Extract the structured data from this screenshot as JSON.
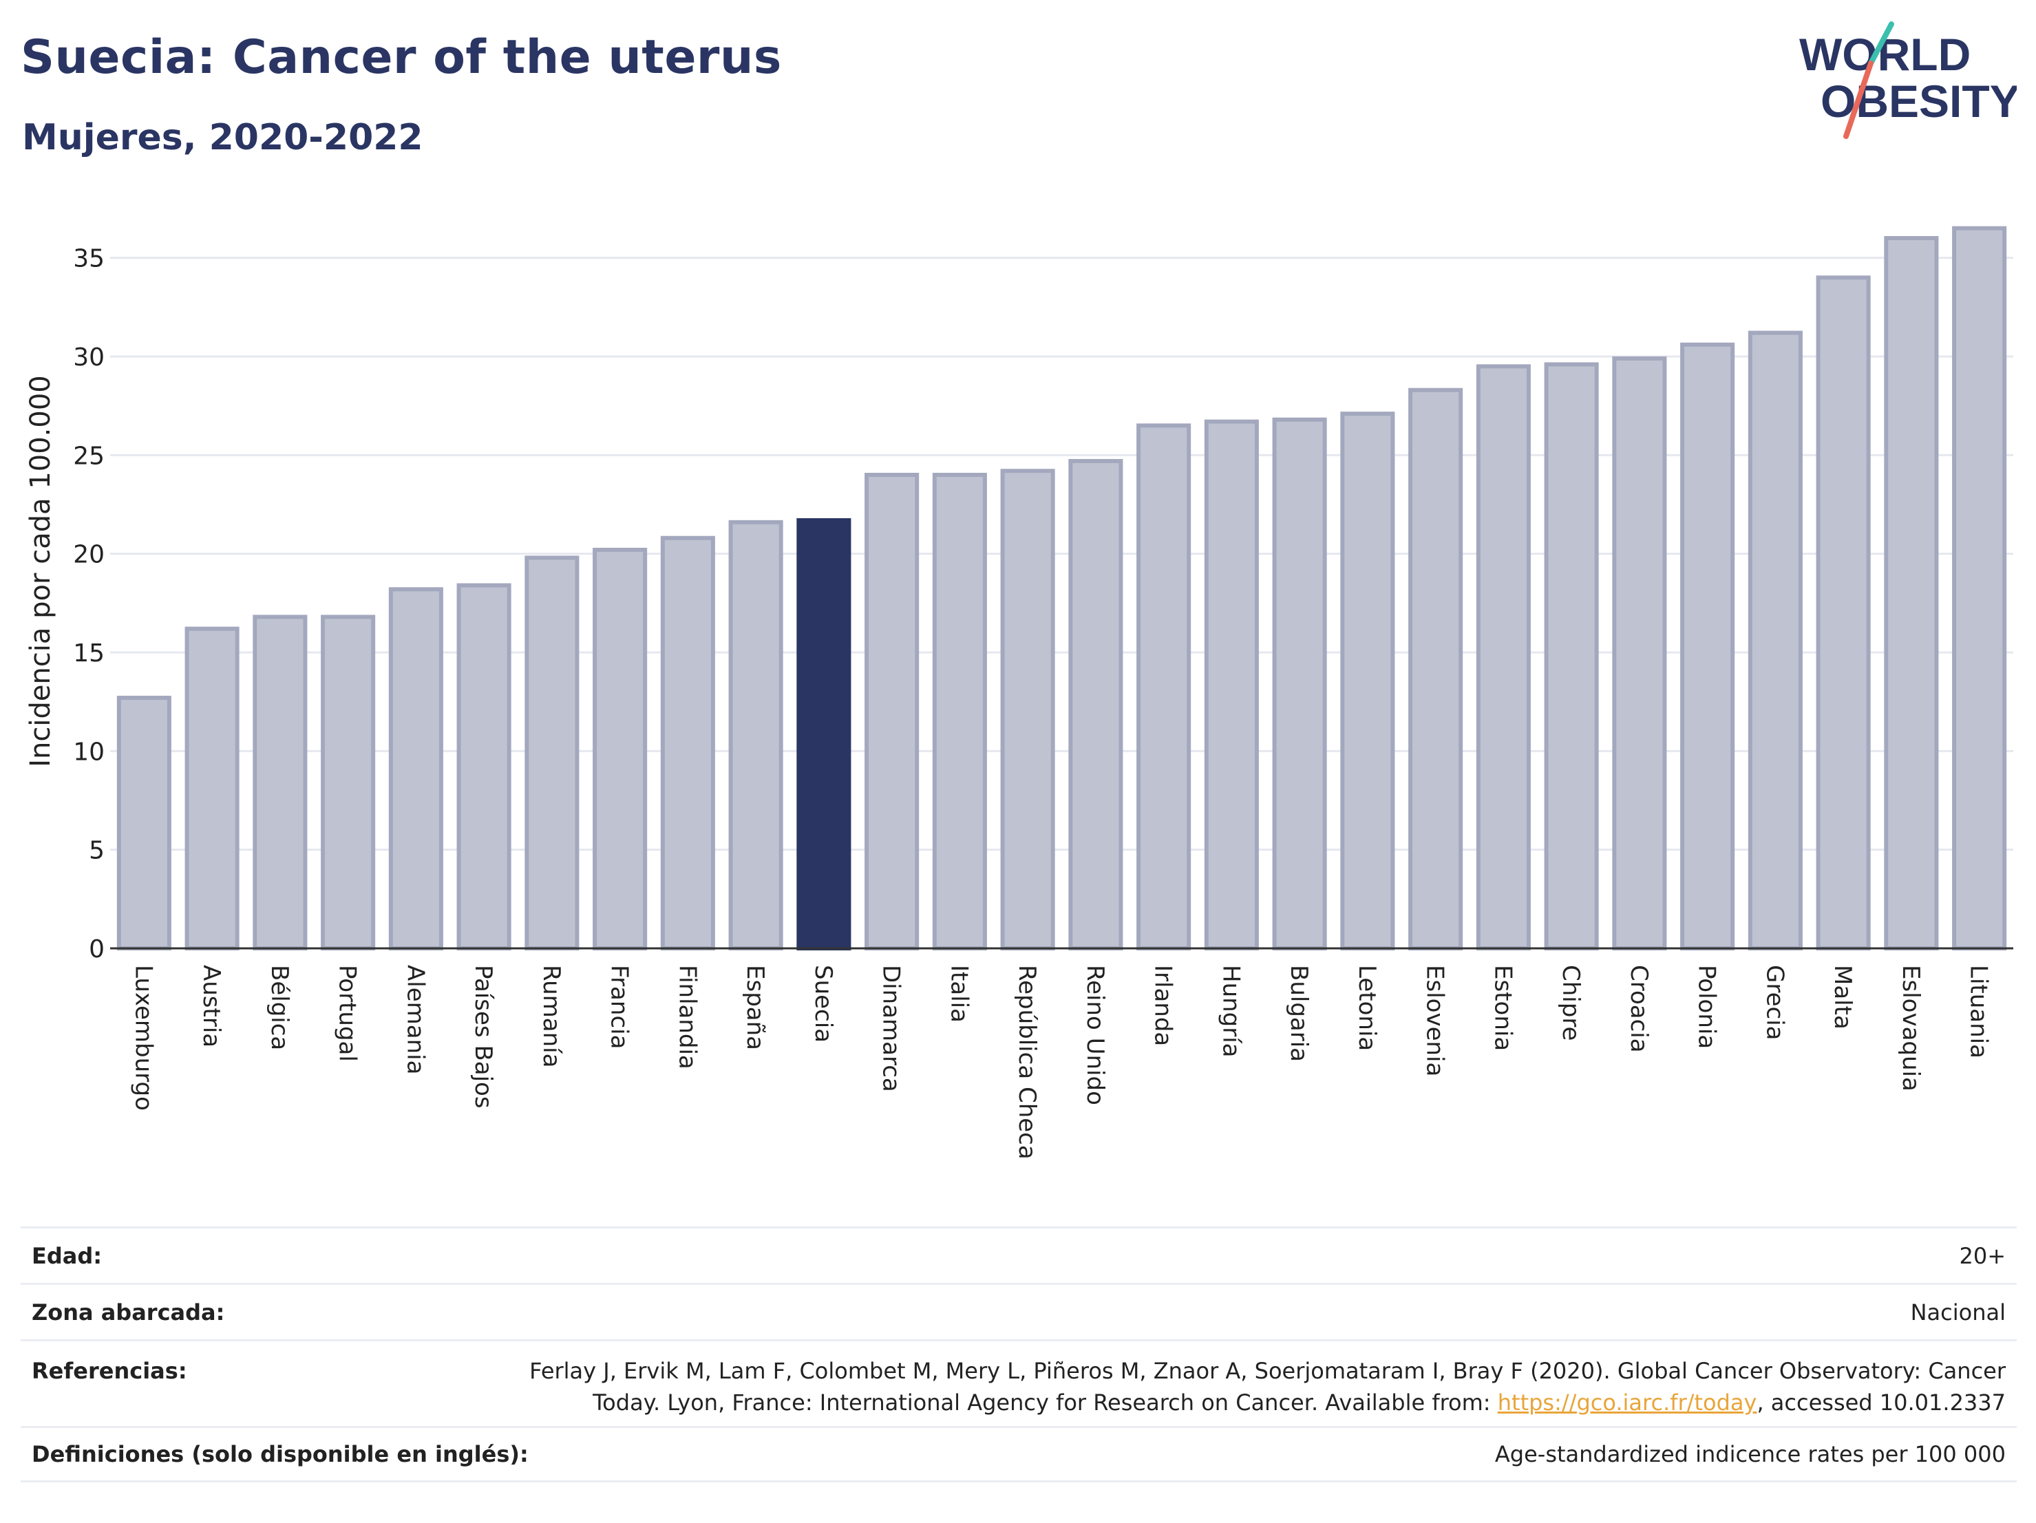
{
  "header": {
    "title": "Suecia: Cancer of the uterus",
    "subtitle": "Mujeres, 2020-2022"
  },
  "logo": {
    "line1": "WORLD",
    "line2": "OBESITY"
  },
  "colors": {
    "bar": "#bfc3d1",
    "bar_stroke": "#a3a8be",
    "highlight": "#2a3563",
    "grid": "#e6e8ef",
    "title": "#2a3563",
    "link": "#e8a53a"
  },
  "chart_data": {
    "type": "bar",
    "ylabel": "Incidencia por cada 100.000",
    "ylim": [
      0,
      37.5
    ],
    "yticks": [
      0,
      5,
      10,
      15,
      20,
      25,
      30,
      35
    ],
    "highlight": "Suecia",
    "categories": [
      "Luxemburgo",
      "Austria",
      "Bélgica",
      "Portugal",
      "Alemania",
      "Países Bajos",
      "Rumanía",
      "Francia",
      "Finlandia",
      "España",
      "Suecia",
      "Dinamarca",
      "Italia",
      "República Checa",
      "Reino Unido",
      "Irlanda",
      "Hungría",
      "Bulgaria",
      "Letonia",
      "Eslovenia",
      "Estonia",
      "Chipre",
      "Croacia",
      "Polonia",
      "Grecia",
      "Malta",
      "Eslovaquia",
      "Lituania"
    ],
    "values": [
      12.7,
      16.2,
      16.8,
      16.8,
      18.2,
      18.4,
      19.8,
      20.2,
      20.8,
      21.6,
      21.7,
      24.0,
      24.0,
      24.2,
      24.7,
      26.5,
      26.7,
      26.8,
      27.1,
      28.3,
      29.5,
      29.6,
      29.9,
      30.6,
      31.2,
      34.0,
      36.0,
      36.5
    ]
  },
  "meta": {
    "edad_label": "Edad:",
    "edad_value": "20+",
    "zona_label": "Zona abarcada:",
    "zona_value": "Nacional",
    "ref_label": "Referencias:",
    "ref_line1": "Ferlay J, Ervik M, Lam F, Colombet M, Mery L, Piñeros M, Znaor A, Soerjomataram I, Bray F (2020). Global Cancer Observatory: Cancer",
    "ref_line2_pre": "Today. Lyon, France: International Agency for Research on Cancer. Available from: ",
    "ref_link": "https://gco.iarc.fr/today",
    "ref_line2_post": ", accessed 10.01.2337",
    "def_label": "Definiciones (solo disponible en inglés):",
    "def_value": "Age-standardized indicence rates per 100 000"
  }
}
